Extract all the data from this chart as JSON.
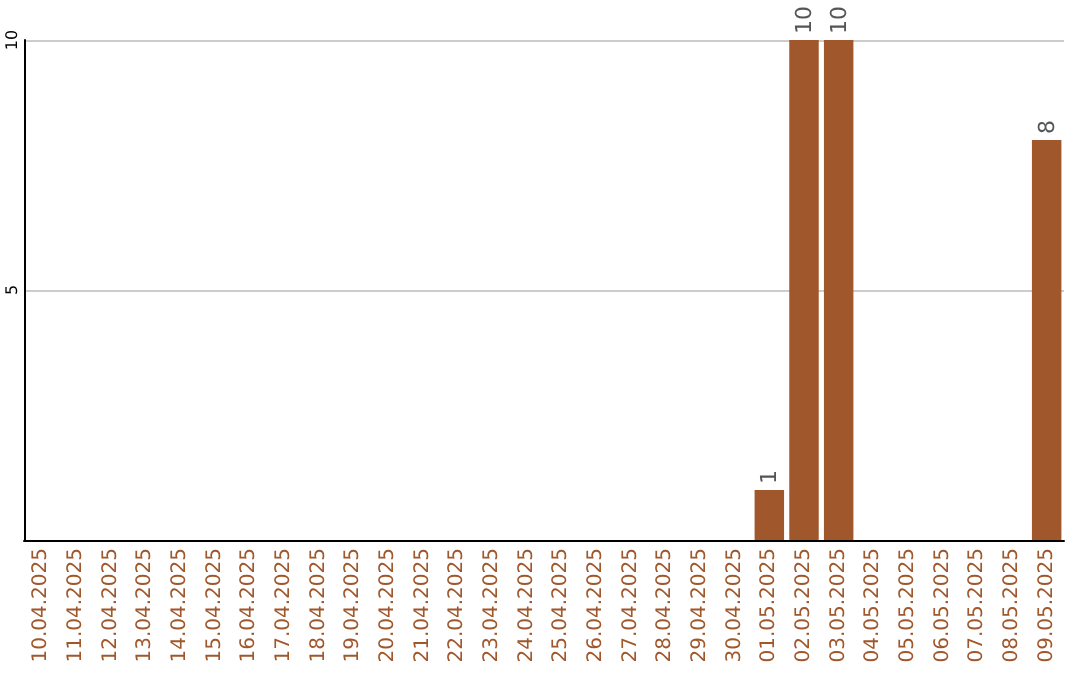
{
  "chart_data": {
    "type": "bar",
    "categories": [
      "10.04.2025",
      "11.04.2025",
      "12.04.2025",
      "13.04.2025",
      "14.04.2025",
      "15.04.2025",
      "16.04.2025",
      "17.04.2025",
      "18.04.2025",
      "19.04.2025",
      "20.04.2025",
      "21.04.2025",
      "22.04.2025",
      "23.04.2025",
      "24.04.2025",
      "25.04.2025",
      "26.04.2025",
      "27.04.2025",
      "28.04.2025",
      "29.04.2025",
      "30.04.2025",
      "01.05.2025",
      "02.05.2025",
      "03.05.2025",
      "04.05.2025",
      "05.05.2025",
      "06.05.2025",
      "07.05.2025",
      "08.05.2025",
      "09.05.2025"
    ],
    "values": [
      0,
      0,
      0,
      0,
      0,
      0,
      0,
      0,
      0,
      0,
      0,
      0,
      0,
      0,
      0,
      0,
      0,
      0,
      0,
      0,
      0,
      1,
      10,
      10,
      0,
      0,
      0,
      0,
      0,
      8
    ],
    "value_labels": [
      null,
      null,
      null,
      null,
      null,
      null,
      null,
      null,
      null,
      null,
      null,
      null,
      null,
      null,
      null,
      null,
      null,
      null,
      null,
      null,
      null,
      "1",
      "10",
      "10",
      null,
      null,
      null,
      null,
      null,
      "8"
    ],
    "color": "#a0572b",
    "ylim": [
      0,
      10
    ],
    "yticks": [
      5,
      10
    ],
    "grid": "y"
  }
}
